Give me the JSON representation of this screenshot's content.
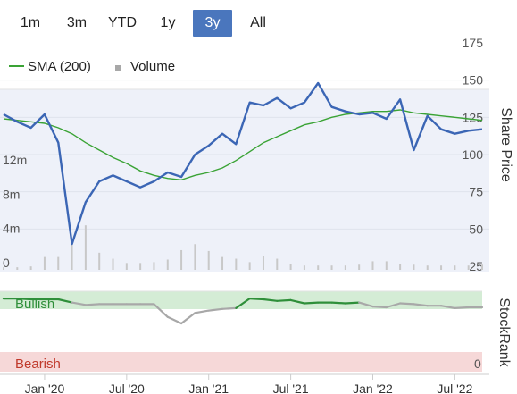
{
  "range_selector": {
    "buttons": [
      "1m",
      "3m",
      "YTD",
      "1y",
      "3y",
      "All"
    ],
    "active": "3y"
  },
  "legend": {
    "sma_label": "SMA (200)",
    "volume_label": "Volume"
  },
  "colors": {
    "price": "#3b66b5",
    "sma": "#3aa335",
    "volume": "#c8c8c8",
    "bullish_zone": "#d4ecd5",
    "bearish_zone": "#f6d8d8",
    "stockrank_bull": "#2f8f3a",
    "stockrank_neutral": "#a8a8a8",
    "active_button": "#4a76bd"
  },
  "chart_data": [
    {
      "type": "line",
      "x_axis_labels": [
        "Jan '20",
        "Jul '20",
        "Jan '21",
        "Jul '21",
        "Jan '22",
        "Jul '22"
      ],
      "ylabel": "Share Price",
      "y_ticks": [
        25,
        50,
        75,
        100,
        125,
        150,
        175
      ],
      "ylim": [
        25,
        175
      ],
      "volume_ticks": [
        "0",
        "4m",
        "8m",
        "12m"
      ],
      "x": [
        "2019-10",
        "2019-11",
        "2019-12",
        "2020-01",
        "2020-02",
        "2020-03",
        "2020-04",
        "2020-05",
        "2020-06",
        "2020-07",
        "2020-08",
        "2020-09",
        "2020-10",
        "2020-11",
        "2020-12",
        "2021-01",
        "2021-02",
        "2021-03",
        "2021-04",
        "2021-05",
        "2021-06",
        "2021-07",
        "2021-08",
        "2021-09",
        "2021-10",
        "2021-11",
        "2021-12",
        "2022-01",
        "2022-02",
        "2022-03",
        "2022-04",
        "2022-05",
        "2022-06",
        "2022-07",
        "2022-08",
        "2022-09"
      ],
      "series": [
        {
          "name": "Share Price",
          "values": [
            127,
            122,
            118,
            127,
            108,
            40,
            68,
            82,
            86,
            82,
            78,
            82,
            88,
            85,
            100,
            106,
            114,
            107,
            135,
            133,
            138,
            131,
            135,
            148,
            132,
            129,
            127,
            128,
            124,
            137,
            103,
            126,
            117,
            114,
            116,
            117
          ]
        },
        {
          "name": "SMA (200)",
          "values": [
            124,
            123,
            122,
            121,
            118,
            114,
            108,
            103,
            98,
            94,
            89,
            86,
            84,
            83,
            86,
            88,
            91,
            96,
            102,
            108,
            112,
            116,
            120,
            122,
            125,
            127,
            128,
            129,
            129,
            130,
            128,
            127,
            126,
            125,
            124,
            123
          ]
        },
        {
          "name": "Volume",
          "values": [
            0.3,
            0.3,
            0.4,
            1.5,
            1.5,
            3.0,
            5.2,
            2.0,
            1.3,
            0.8,
            0.8,
            0.9,
            1.2,
            2.3,
            3.0,
            2.2,
            1.5,
            1.3,
            0.9,
            1.6,
            1.3,
            0.7,
            0.5,
            0.5,
            0.5,
            0.5,
            0.6,
            1.0,
            1.0,
            0.7,
            0.6,
            0.5,
            0.5,
            0.5,
            0.5,
            0.6
          ]
        }
      ]
    },
    {
      "type": "line",
      "ylabel": "StockRank",
      "y_ticks": [
        0
      ],
      "zone_labels": [
        "Bullish",
        "Bearish"
      ],
      "ylim": [
        0,
        100
      ],
      "series": [
        {
          "name": "StockRank",
          "values": [
            91,
            91,
            90,
            90,
            90,
            86,
            83,
            84,
            84,
            84,
            84,
            84,
            68,
            60,
            73,
            76,
            78,
            79,
            91,
            90,
            88,
            89,
            85,
            86,
            86,
            85,
            86,
            81,
            80,
            85,
            84,
            82,
            82,
            79,
            80,
            80
          ]
        }
      ]
    }
  ]
}
